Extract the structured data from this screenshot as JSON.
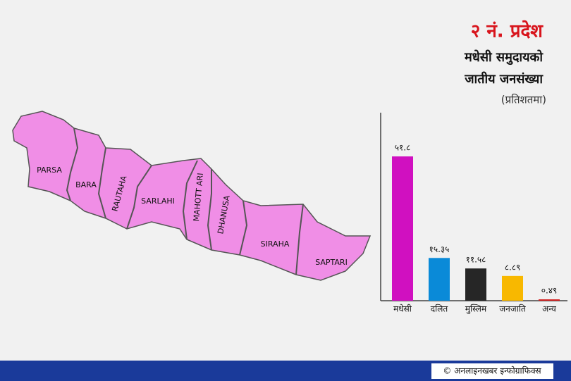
{
  "chart_data": {
    "type": "bar",
    "title": "२ नं. प्रदेश",
    "subtitle": [
      "मधेसी समुदायको",
      "जातीय जनसंख्या"
    ],
    "note": "(प्रतिशतमा)",
    "categories": [
      "मधेसी",
      "दलित",
      "मुस्लिम",
      "जनजाति",
      "अन्य"
    ],
    "values": [
      51.8,
      15.35,
      11.58,
      8.89,
      0.49
    ],
    "value_labels": [
      "५१.८",
      "१५.३५",
      "११.५८",
      "८.८९",
      "०.४९"
    ],
    "colors": [
      "#d010c0",
      "#0a8ad8",
      "#262626",
      "#f8b800",
      "#d42020"
    ],
    "ylim": [
      0,
      67
    ]
  },
  "map": {
    "districts": [
      "PARSA",
      "BARA",
      "RAUTAHA",
      "SARLAHI",
      "MAHOTT ARI",
      "DHANUSA",
      "SIRAHA",
      "SAPTARI"
    ]
  },
  "footer": "© अनलाइनखबर इन्फोग्राफिक्स"
}
